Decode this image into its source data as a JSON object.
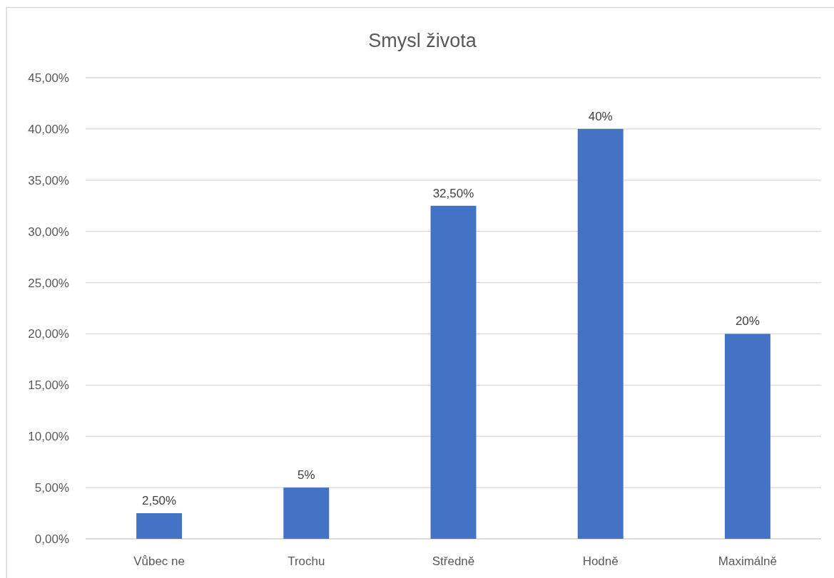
{
  "chart_data": {
    "type": "bar",
    "title": "Smysl života",
    "categories": [
      "Vůbec ne",
      "Trochu",
      "Středně",
      "Hodně",
      "Maximálně"
    ],
    "values": [
      2.5,
      5,
      32.5,
      40,
      20
    ],
    "color": "#4472c4",
    "value_labels": [
      "2,50%",
      "5%",
      "32,50%",
      "40%",
      "20%"
    ],
    "ylim": [
      0,
      45
    ],
    "yticks": [
      {
        "value": 0,
        "label": "0,00%"
      },
      {
        "value": 5,
        "label": "5,00%"
      },
      {
        "value": 10,
        "label": "10,00%"
      },
      {
        "value": 15,
        "label": "15,00%"
      },
      {
        "value": 20,
        "label": "20,00%"
      },
      {
        "value": 25,
        "label": "25,00%"
      },
      {
        "value": 30,
        "label": "30,00%"
      },
      {
        "value": 35,
        "label": "35,00%"
      },
      {
        "value": 40,
        "label": "40,00%"
      },
      {
        "value": 45,
        "label": "45,00%"
      }
    ],
    "grid": "y"
  }
}
